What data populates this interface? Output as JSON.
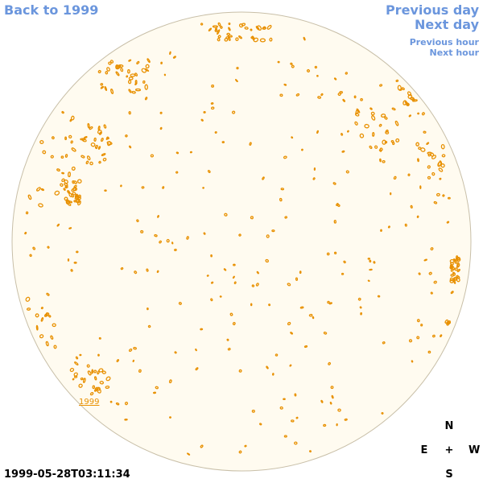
{
  "nav": {
    "back": "Back to 1999",
    "previous_day": "Previous day",
    "next_day": "Next day",
    "previous_hour": "Previous hour",
    "next_hour": "Next hour"
  },
  "disk": {
    "year_label": "1999",
    "fill_color": "#fffbf0",
    "outline_color": "#c8bfa8",
    "feature_color": "#e89000"
  },
  "compass": {
    "north": "N",
    "south": "S",
    "east": "E",
    "west": "W",
    "center": "+"
  },
  "timestamp": "1999-05-28T03:11:34",
  "colors": {
    "link": "#6b96dd",
    "text": "#000000"
  }
}
